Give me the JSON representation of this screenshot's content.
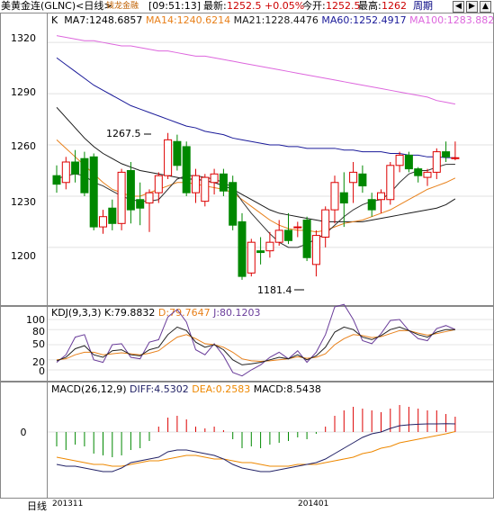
{
  "header": {
    "instrument": "美黄金连(GLNC)<日线>",
    "logo_text": "钱龙金融",
    "time": "[09:51:13]",
    "latest_label": "最新:",
    "latest_value": "1252.5",
    "change": "+0.05%",
    "open_label": "今开:",
    "open_value": "1252.5",
    "high_label": "最高:",
    "high_value": "1262",
    "period_button": "周期"
  },
  "colors": {
    "up": "#dd0000",
    "down": "#008800",
    "ma7": "#000000",
    "ma14": "#e8801a",
    "ma21": "#1a1a1a",
    "ma60": "#1a1a99",
    "ma100": "#dd66dd",
    "diff": "#222266",
    "dea": "#ee8800"
  },
  "main": {
    "k_label": "K",
    "ma": [
      {
        "label": "MA7:1248.6857"
      },
      {
        "label": "MA14:1240.6214"
      },
      {
        "label": "MA21:1228.4476"
      },
      {
        "label": "MA60:1252.4917"
      },
      {
        "label": "MA100:1283.8820"
      }
    ],
    "y_ticks": [
      "1320",
      "1290",
      "1260",
      "1230",
      "1200"
    ],
    "annotations": {
      "high": "1267.5",
      "low": "1181.4"
    }
  },
  "kdj": {
    "label": "KDJ(9,3,3)",
    "k": "K:79.8832",
    "d": "D:79.7647",
    "j": "J:80.1203",
    "y_ticks": [
      "100",
      "80",
      "50",
      "20",
      "0"
    ]
  },
  "macd": {
    "label": "MACD(26,12,9)",
    "diff": "DIFF:4.5302",
    "dea": "DEA:0.2583",
    "macd": "MACD:8.5438",
    "y_ticks": [
      "0"
    ]
  },
  "x_axis": {
    "period": "日线",
    "labels": [
      "201311",
      "201401"
    ]
  },
  "chart_data": {
    "type": "candlestick",
    "ylim": [
      1172,
      1328
    ],
    "candles": [
      {
        "o": 1242,
        "h": 1248,
        "l": 1232,
        "c": 1237
      },
      {
        "o": 1238,
        "h": 1253,
        "l": 1234,
        "c": 1250
      },
      {
        "o": 1250,
        "h": 1257,
        "l": 1238,
        "c": 1243
      },
      {
        "o": 1252,
        "h": 1256,
        "l": 1230,
        "c": 1232
      },
      {
        "o": 1253,
        "h": 1255,
        "l": 1210,
        "c": 1212
      },
      {
        "o": 1212,
        "h": 1222,
        "l": 1208,
        "c": 1218
      },
      {
        "o": 1223,
        "h": 1228,
        "l": 1210,
        "c": 1214
      },
      {
        "o": 1214,
        "h": 1246,
        "l": 1210,
        "c": 1244
      },
      {
        "o": 1245,
        "h": 1250,
        "l": 1214,
        "c": 1222
      },
      {
        "o": 1228,
        "h": 1238,
        "l": 1213,
        "c": 1223
      },
      {
        "o": 1226,
        "h": 1234,
        "l": 1209,
        "c": 1232
      },
      {
        "o": 1232,
        "h": 1244,
        "l": 1226,
        "c": 1242
      },
      {
        "o": 1242,
        "h": 1267,
        "l": 1240,
        "c": 1263
      },
      {
        "o": 1262,
        "h": 1266,
        "l": 1245,
        "c": 1248
      },
      {
        "o": 1259,
        "h": 1262,
        "l": 1230,
        "c": 1232
      },
      {
        "o": 1232,
        "h": 1246,
        "l": 1226,
        "c": 1242
      },
      {
        "o": 1227,
        "h": 1243,
        "l": 1224,
        "c": 1241
      },
      {
        "o": 1238,
        "h": 1246,
        "l": 1231,
        "c": 1243
      },
      {
        "o": 1243,
        "h": 1246,
        "l": 1230,
        "c": 1233
      },
      {
        "o": 1238,
        "h": 1242,
        "l": 1210,
        "c": 1213
      },
      {
        "o": 1215,
        "h": 1220,
        "l": 1181,
        "c": 1183
      },
      {
        "o": 1185,
        "h": 1205,
        "l": 1183,
        "c": 1203
      },
      {
        "o": 1198,
        "h": 1206,
        "l": 1190,
        "c": 1197
      },
      {
        "o": 1198,
        "h": 1209,
        "l": 1194,
        "c": 1203
      },
      {
        "o": 1203,
        "h": 1216,
        "l": 1201,
        "c": 1210
      },
      {
        "o": 1210,
        "h": 1220,
        "l": 1202,
        "c": 1204
      },
      {
        "o": 1212,
        "h": 1215,
        "l": 1206,
        "c": 1212
      },
      {
        "o": 1216,
        "h": 1218,
        "l": 1192,
        "c": 1194
      },
      {
        "o": 1190,
        "h": 1210,
        "l": 1183,
        "c": 1207
      },
      {
        "o": 1206,
        "h": 1224,
        "l": 1200,
        "c": 1222
      },
      {
        "o": 1222,
        "h": 1242,
        "l": 1214,
        "c": 1238
      },
      {
        "o": 1232,
        "h": 1244,
        "l": 1212,
        "c": 1226
      },
      {
        "o": 1238,
        "h": 1250,
        "l": 1226,
        "c": 1244
      },
      {
        "o": 1243,
        "h": 1248,
        "l": 1232,
        "c": 1236
      },
      {
        "o": 1228,
        "h": 1232,
        "l": 1218,
        "c": 1222
      },
      {
        "o": 1228,
        "h": 1234,
        "l": 1220,
        "c": 1232
      },
      {
        "o": 1228,
        "h": 1250,
        "l": 1225,
        "c": 1248
      },
      {
        "o": 1248,
        "h": 1256,
        "l": 1244,
        "c": 1254
      },
      {
        "o": 1254,
        "h": 1256,
        "l": 1244,
        "c": 1246
      },
      {
        "o": 1246,
        "h": 1247,
        "l": 1238,
        "c": 1242
      },
      {
        "o": 1241,
        "h": 1246,
        "l": 1236,
        "c": 1244
      },
      {
        "o": 1244,
        "h": 1258,
        "l": 1240,
        "c": 1256
      },
      {
        "o": 1256,
        "h": 1262,
        "l": 1250,
        "c": 1253
      },
      {
        "o": 1252.5,
        "h": 1262,
        "l": 1251,
        "c": 1252.5
      }
    ],
    "ma7": [
      1240,
      1242,
      1243,
      1242,
      1238,
      1236,
      1233,
      1230,
      1228,
      1227,
      1227,
      1228,
      1234,
      1240,
      1242,
      1242,
      1241,
      1240,
      1238,
      1235,
      1227,
      1220,
      1214,
      1208,
      1203,
      1200,
      1200,
      1202,
      1205,
      1208,
      1213,
      1218,
      1222,
      1225,
      1227,
      1228,
      1232,
      1238,
      1243,
      1245,
      1245,
      1247,
      1248.6,
      1248.7
    ],
    "ma14": [
      1263,
      1258,
      1253,
      1248,
      1243,
      1238,
      1234,
      1232,
      1230,
      1230,
      1232,
      1234,
      1236,
      1238,
      1238,
      1237,
      1236,
      1235,
      1234,
      1232,
      1228,
      1224,
      1220,
      1216,
      1213,
      1211,
      1210,
      1210,
      1209,
      1210,
      1212,
      1214,
      1215,
      1216,
      1218,
      1220,
      1222,
      1225,
      1228,
      1231,
      1234,
      1236,
      1238,
      1240.6
    ],
    "ma21": [
      1282,
      1276,
      1270,
      1264,
      1259,
      1255,
      1252,
      1249,
      1247,
      1245,
      1244,
      1243,
      1242,
      1241,
      1240,
      1240,
      1239,
      1238,
      1236,
      1234,
      1231,
      1228,
      1225,
      1222,
      1220,
      1219,
      1218,
      1217,
      1216,
      1215,
      1215,
      1215,
      1215,
      1215,
      1216,
      1217,
      1218,
      1219,
      1220,
      1221,
      1222,
      1223,
      1225,
      1228.4
    ],
    "ma60": [
      1311,
      1307,
      1303,
      1299,
      1295,
      1292,
      1289,
      1286,
      1283,
      1281,
      1279,
      1277,
      1275,
      1273,
      1271,
      1270,
      1268,
      1267,
      1266,
      1264,
      1263,
      1262,
      1261,
      1260,
      1260,
      1259,
      1259,
      1258,
      1258,
      1258,
      1258,
      1257,
      1257,
      1256,
      1256,
      1256,
      1255,
      1255,
      1254,
      1254,
      1253,
      1253,
      1252.6,
      1252.5
    ],
    "ma100": [
      1324,
      1323,
      1322,
      1321,
      1321,
      1320,
      1319,
      1318,
      1318,
      1317,
      1316,
      1315,
      1315,
      1314,
      1313,
      1312,
      1312,
      1311,
      1310,
      1309,
      1308,
      1307,
      1306,
      1305,
      1304,
      1303,
      1302,
      1301,
      1300,
      1299,
      1298,
      1297,
      1296,
      1295,
      1294,
      1293,
      1292,
      1291,
      1290,
      1289,
      1288,
      1286,
      1285,
      1283.9
    ],
    "kdj_k": [
      18,
      25,
      42,
      48,
      30,
      25,
      38,
      40,
      30,
      28,
      40,
      45,
      70,
      85,
      78,
      55,
      45,
      50,
      40,
      20,
      10,
      12,
      15,
      20,
      25,
      22,
      30,
      20,
      28,
      45,
      75,
      85,
      80,
      65,
      60,
      68,
      80,
      85,
      78,
      70,
      65,
      75,
      80,
      79.9
    ],
    "kdj_d": [
      20,
      22,
      30,
      35,
      35,
      30,
      32,
      34,
      32,
      30,
      33,
      38,
      52,
      65,
      70,
      62,
      52,
      50,
      45,
      35,
      22,
      18,
      17,
      18,
      20,
      22,
      26,
      23,
      25,
      32,
      50,
      62,
      70,
      68,
      64,
      66,
      72,
      78,
      78,
      73,
      69,
      72,
      76,
      79.8
    ],
    "kdj_j": [
      15,
      30,
      65,
      70,
      20,
      15,
      50,
      52,
      25,
      22,
      55,
      60,
      105,
      120,
      95,
      40,
      30,
      52,
      28,
      -5,
      -12,
      0,
      10,
      25,
      35,
      22,
      38,
      15,
      35,
      70,
      125,
      130,
      100,
      58,
      52,
      72,
      98,
      100,
      78,
      62,
      58,
      82,
      88,
      80.1
    ],
    "macd_hist": [
      -8,
      -10,
      -7,
      -8,
      -12,
      -13,
      -14,
      -13,
      -10,
      -9,
      -5,
      3,
      8,
      9,
      7,
      3,
      2,
      3,
      1,
      -4,
      -9,
      -8,
      -9,
      -7,
      -6,
      -5,
      -3,
      -4,
      -1,
      3,
      9,
      12,
      14,
      13,
      12,
      11,
      13,
      15,
      14,
      13,
      12,
      12,
      10,
      8.5
    ],
    "macd_diff": [
      -18,
      -19,
      -19,
      -20,
      -21,
      -22,
      -22,
      -20,
      -17,
      -16,
      -15,
      -14,
      -11,
      -10,
      -10,
      -11,
      -12,
      -13,
      -15,
      -18,
      -20,
      -21,
      -22,
      -22,
      -21,
      -20,
      -19,
      -18,
      -17,
      -15,
      -12,
      -9,
      -6,
      -3,
      -1,
      0,
      2,
      3.5,
      4,
      4.3,
      4.5,
      4.5,
      4.6,
      4.5
    ],
    "macd_dea": [
      -14,
      -15,
      -16,
      -17,
      -18,
      -18,
      -19,
      -19,
      -18,
      -17,
      -16,
      -16,
      -15,
      -14,
      -13,
      -13,
      -14,
      -15,
      -15,
      -16,
      -17,
      -17,
      -18,
      -19,
      -19,
      -19,
      -18,
      -18,
      -18,
      -17,
      -16,
      -15,
      -14,
      -12,
      -11,
      -9,
      -8,
      -6,
      -5,
      -4,
      -3,
      -2,
      -1,
      0.26
    ]
  }
}
